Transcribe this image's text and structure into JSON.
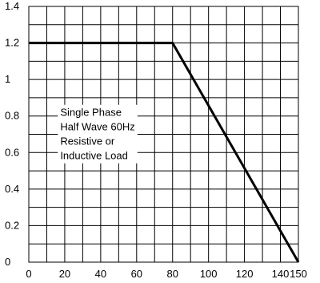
{
  "chart_data": {
    "type": "line",
    "title": "",
    "xlabel": "",
    "ylabel": "",
    "xlim": [
      0,
      150
    ],
    "ylim": [
      0,
      1.4
    ],
    "grid": true,
    "x_ticks": [
      "0",
      "20",
      "40",
      "60",
      "80",
      "100",
      "120",
      "140",
      "150"
    ],
    "y_ticks": [
      "0",
      "0.2",
      "0.4",
      "0.6",
      "0.8",
      "1",
      "1.2",
      "1.4"
    ],
    "series": [
      {
        "x": [
          0,
          80,
          150
        ],
        "y": [
          1.2,
          1.2,
          0
        ]
      }
    ],
    "annotation": [
      "Single Phase",
      "Half Wave 60Hz",
      "Resistive or",
      "Inductive Load"
    ]
  }
}
